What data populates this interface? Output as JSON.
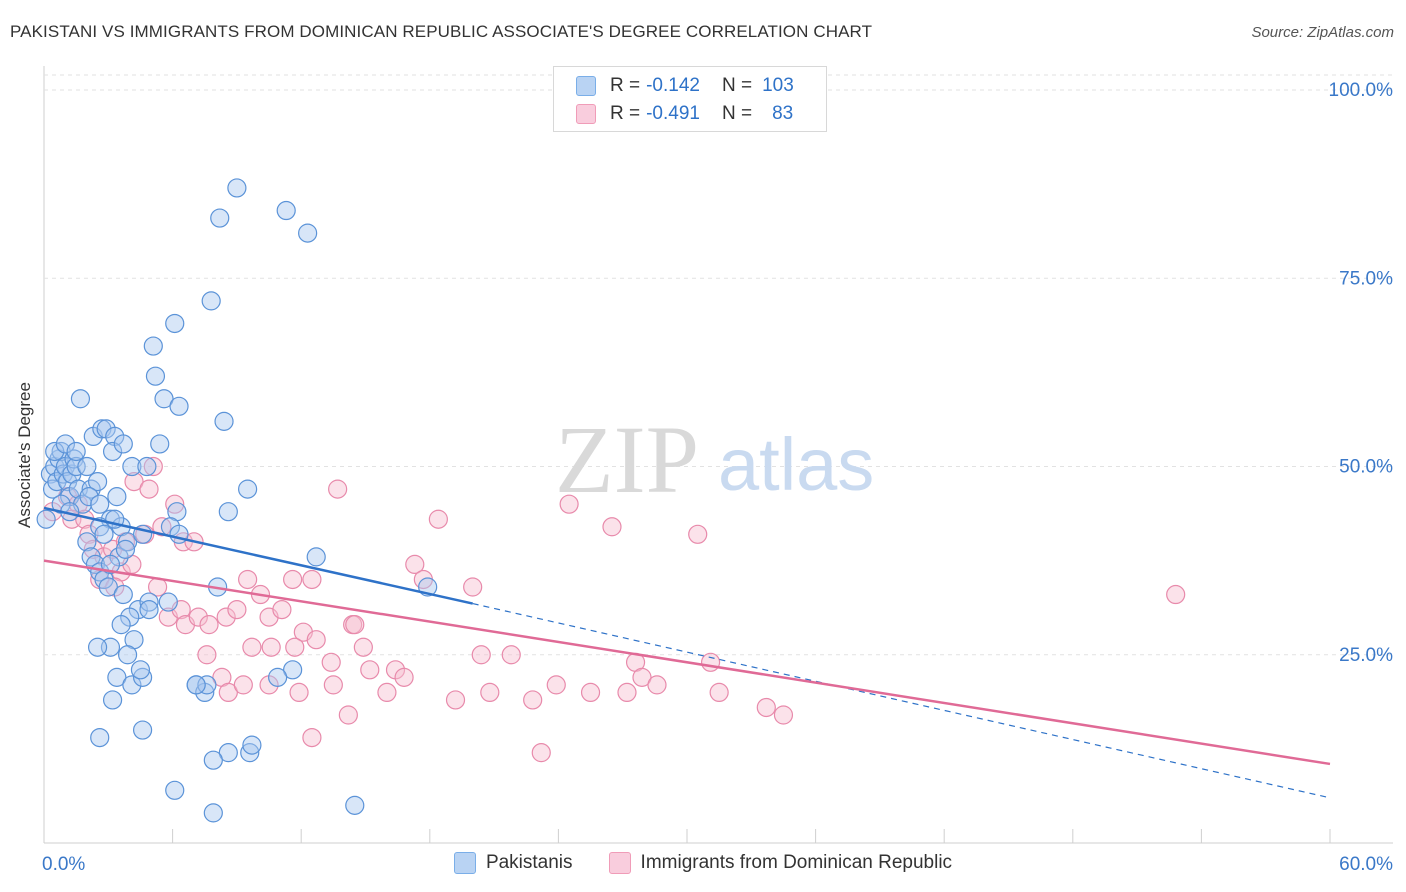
{
  "title": "PAKISTANI VS IMMIGRANTS FROM DOMINICAN REPUBLIC ASSOCIATE'S DEGREE CORRELATION CHART",
  "source": "Source: ZipAtlas.com",
  "watermark": {
    "zip": "ZIP",
    "atlas": "atlas"
  },
  "legend": {
    "rows": [
      {
        "r_label": "R =",
        "r_value": "-0.142",
        "n_label": "N =",
        "n_value": "103",
        "color": "#7aaee8"
      },
      {
        "r_label": "R =",
        "r_value": "-0.491",
        "n_label": "N =",
        "n_value": "83",
        "color": "#f09cb8"
      }
    ]
  },
  "colors": {
    "blue_fill": "#a9c8f0",
    "blue_stroke": "#5b93d8",
    "blue_line": "#2e72c8",
    "pink_fill": "#f6bfd1",
    "pink_stroke": "#e88aab",
    "pink_line": "#e06a96",
    "tick_text": "#3a78c8"
  },
  "chart_data": {
    "type": "scatter",
    "title": "PAKISTANI VS IMMIGRANTS FROM DOMINICAN REPUBLIC ASSOCIATE'S DEGREE CORRELATION CHART",
    "xlabel": "",
    "ylabel": "Associate's Degree",
    "xlim": [
      0,
      60
    ],
    "ylim": [
      0,
      102
    ],
    "x_tick_labels": [
      "0.0%",
      "60.0%"
    ],
    "y_ticks": [
      25,
      50,
      75,
      100
    ],
    "y_tick_labels": [
      "25.0%",
      "50.0%",
      "75.0%",
      "100.0%"
    ],
    "grid": true,
    "legend_position": "top-center",
    "series": [
      {
        "name": "Pakistanis",
        "r": -0.142,
        "n": 103,
        "trend": {
          "x0": 0,
          "y0": 44.5,
          "x1": 20,
          "y1": 31.8,
          "dashed_to_x": 60,
          "dashed_to_y": 6
        },
        "points": [
          [
            0.1,
            43
          ],
          [
            0.3,
            49
          ],
          [
            0.4,
            47
          ],
          [
            0.5,
            50
          ],
          [
            0.6,
            48
          ],
          [
            0.7,
            51
          ],
          [
            0.8,
            52
          ],
          [
            0.9,
            49
          ],
          [
            1.0,
            50
          ],
          [
            1.1,
            48
          ],
          [
            1.2,
            46
          ],
          [
            1.3,
            49
          ],
          [
            1.4,
            51
          ],
          [
            1.5,
            50
          ],
          [
            1.6,
            47
          ],
          [
            1.8,
            45
          ],
          [
            2.0,
            50
          ],
          [
            2.2,
            47
          ],
          [
            0.5,
            52
          ],
          [
            1.0,
            53
          ],
          [
            1.5,
            52
          ],
          [
            0.8,
            45
          ],
          [
            1.2,
            44
          ],
          [
            1.7,
            59
          ],
          [
            2.3,
            54
          ],
          [
            2.7,
            55
          ],
          [
            2.9,
            55
          ],
          [
            3.3,
            54
          ],
          [
            3.2,
            52
          ],
          [
            3.7,
            53
          ],
          [
            4.1,
            50
          ],
          [
            2.5,
            48
          ],
          [
            2.1,
            46
          ],
          [
            2.6,
            45
          ],
          [
            3.1,
            43
          ],
          [
            3.4,
            46
          ],
          [
            3.6,
            42
          ],
          [
            2.0,
            40
          ],
          [
            2.2,
            38
          ],
          [
            2.4,
            37
          ],
          [
            2.6,
            36
          ],
          [
            2.8,
            35
          ],
          [
            3.0,
            34
          ],
          [
            3.5,
            38
          ],
          [
            3.9,
            40
          ],
          [
            4.6,
            41
          ],
          [
            4.4,
            31
          ],
          [
            4.9,
            32
          ],
          [
            4.0,
            30
          ],
          [
            3.6,
            29
          ],
          [
            4.2,
            27
          ],
          [
            3.9,
            25
          ],
          [
            3.1,
            26
          ],
          [
            2.5,
            26
          ],
          [
            3.4,
            22
          ],
          [
            4.1,
            21
          ],
          [
            4.6,
            22
          ],
          [
            3.2,
            19
          ],
          [
            4.6,
            15
          ],
          [
            2.6,
            14
          ],
          [
            6.1,
            7
          ],
          [
            7.9,
            4
          ],
          [
            7.1,
            21
          ],
          [
            7.5,
            20
          ],
          [
            7.6,
            21
          ],
          [
            8.6,
            12
          ],
          [
            9.6,
            12
          ],
          [
            9.7,
            13
          ],
          [
            11.6,
            23
          ],
          [
            8.1,
            34
          ],
          [
            10.9,
            22
          ],
          [
            8.6,
            44
          ],
          [
            9.5,
            47
          ],
          [
            12.7,
            38
          ],
          [
            17.9,
            34
          ],
          [
            14.5,
            5
          ],
          [
            6.1,
            69
          ],
          [
            5.1,
            66
          ],
          [
            5.2,
            62
          ],
          [
            5.6,
            59
          ],
          [
            5.4,
            53
          ],
          [
            6.3,
            58
          ],
          [
            7.8,
            72
          ],
          [
            9.0,
            87
          ],
          [
            8.2,
            83
          ],
          [
            11.3,
            84
          ],
          [
            12.3,
            81
          ],
          [
            8.4,
            56
          ],
          [
            4.8,
            50
          ],
          [
            6.2,
            44
          ],
          [
            5.9,
            42
          ],
          [
            6.3,
            41
          ],
          [
            5.8,
            32
          ],
          [
            4.9,
            31
          ],
          [
            4.5,
            23
          ],
          [
            7.1,
            21
          ],
          [
            7.9,
            11
          ],
          [
            3.7,
            33
          ],
          [
            3.1,
            37
          ],
          [
            2.6,
            42
          ],
          [
            3.8,
            39
          ],
          [
            2.8,
            41
          ],
          [
            3.3,
            43
          ]
        ]
      },
      {
        "name": "Immigrants from Dominican Republic",
        "r": -0.491,
        "n": 83,
        "trend": {
          "x0": 0,
          "y0": 37.5,
          "x1": 60,
          "y1": 10.5
        },
        "points": [
          [
            0.4,
            44
          ],
          [
            1.1,
            46
          ],
          [
            1.6,
            45
          ],
          [
            1.3,
            43
          ],
          [
            1.9,
            43
          ],
          [
            2.1,
            41
          ],
          [
            2.3,
            39
          ],
          [
            2.8,
            38
          ],
          [
            3.2,
            39
          ],
          [
            3.6,
            36
          ],
          [
            2.6,
            35
          ],
          [
            3.3,
            34
          ],
          [
            4.1,
            37
          ],
          [
            3.8,
            40
          ],
          [
            4.7,
            41
          ],
          [
            4.2,
            48
          ],
          [
            4.9,
            47
          ],
          [
            5.1,
            50
          ],
          [
            6.1,
            45
          ],
          [
            5.5,
            42
          ],
          [
            6.5,
            40
          ],
          [
            7.0,
            40
          ],
          [
            5.3,
            34
          ],
          [
            5.8,
            30
          ],
          [
            6.4,
            31
          ],
          [
            6.6,
            29
          ],
          [
            7.2,
            30
          ],
          [
            7.7,
            29
          ],
          [
            8.5,
            30
          ],
          [
            9.0,
            31
          ],
          [
            9.5,
            35
          ],
          [
            10.1,
            33
          ],
          [
            10.5,
            30
          ],
          [
            11.1,
            31
          ],
          [
            12.1,
            28
          ],
          [
            11.6,
            35
          ],
          [
            12.5,
            35
          ],
          [
            13.7,
            47
          ],
          [
            14.4,
            29
          ],
          [
            14.9,
            26
          ],
          [
            13.4,
            24
          ],
          [
            12.7,
            27
          ],
          [
            11.7,
            26
          ],
          [
            10.6,
            26
          ],
          [
            9.7,
            26
          ],
          [
            8.3,
            22
          ],
          [
            7.6,
            25
          ],
          [
            8.6,
            20
          ],
          [
            9.3,
            21
          ],
          [
            10.5,
            21
          ],
          [
            11.9,
            20
          ],
          [
            12.5,
            14
          ],
          [
            13.5,
            21
          ],
          [
            14.2,
            17
          ],
          [
            15.2,
            23
          ],
          [
            16.0,
            20
          ],
          [
            16.4,
            23
          ],
          [
            16.8,
            22
          ],
          [
            17.3,
            37
          ],
          [
            17.7,
            35
          ],
          [
            18.4,
            43
          ],
          [
            19.2,
            19
          ],
          [
            20.4,
            25
          ],
          [
            20.8,
            20
          ],
          [
            21.8,
            25
          ],
          [
            22.8,
            19
          ],
          [
            23.2,
            12
          ],
          [
            23.9,
            21
          ],
          [
            24.5,
            45
          ],
          [
            25.5,
            20
          ],
          [
            26.5,
            42
          ],
          [
            27.2,
            20
          ],
          [
            27.6,
            24
          ],
          [
            27.9,
            22
          ],
          [
            28.6,
            21
          ],
          [
            30.5,
            41
          ],
          [
            31.1,
            24
          ],
          [
            31.5,
            20
          ],
          [
            33.7,
            18
          ],
          [
            34.5,
            17
          ],
          [
            20.0,
            34
          ],
          [
            14.5,
            29
          ],
          [
            52.8,
            33
          ]
        ]
      }
    ]
  },
  "bottom_legend": {
    "series_1": "Pakistanis",
    "series_2": "Immigrants from Dominican Republic"
  }
}
